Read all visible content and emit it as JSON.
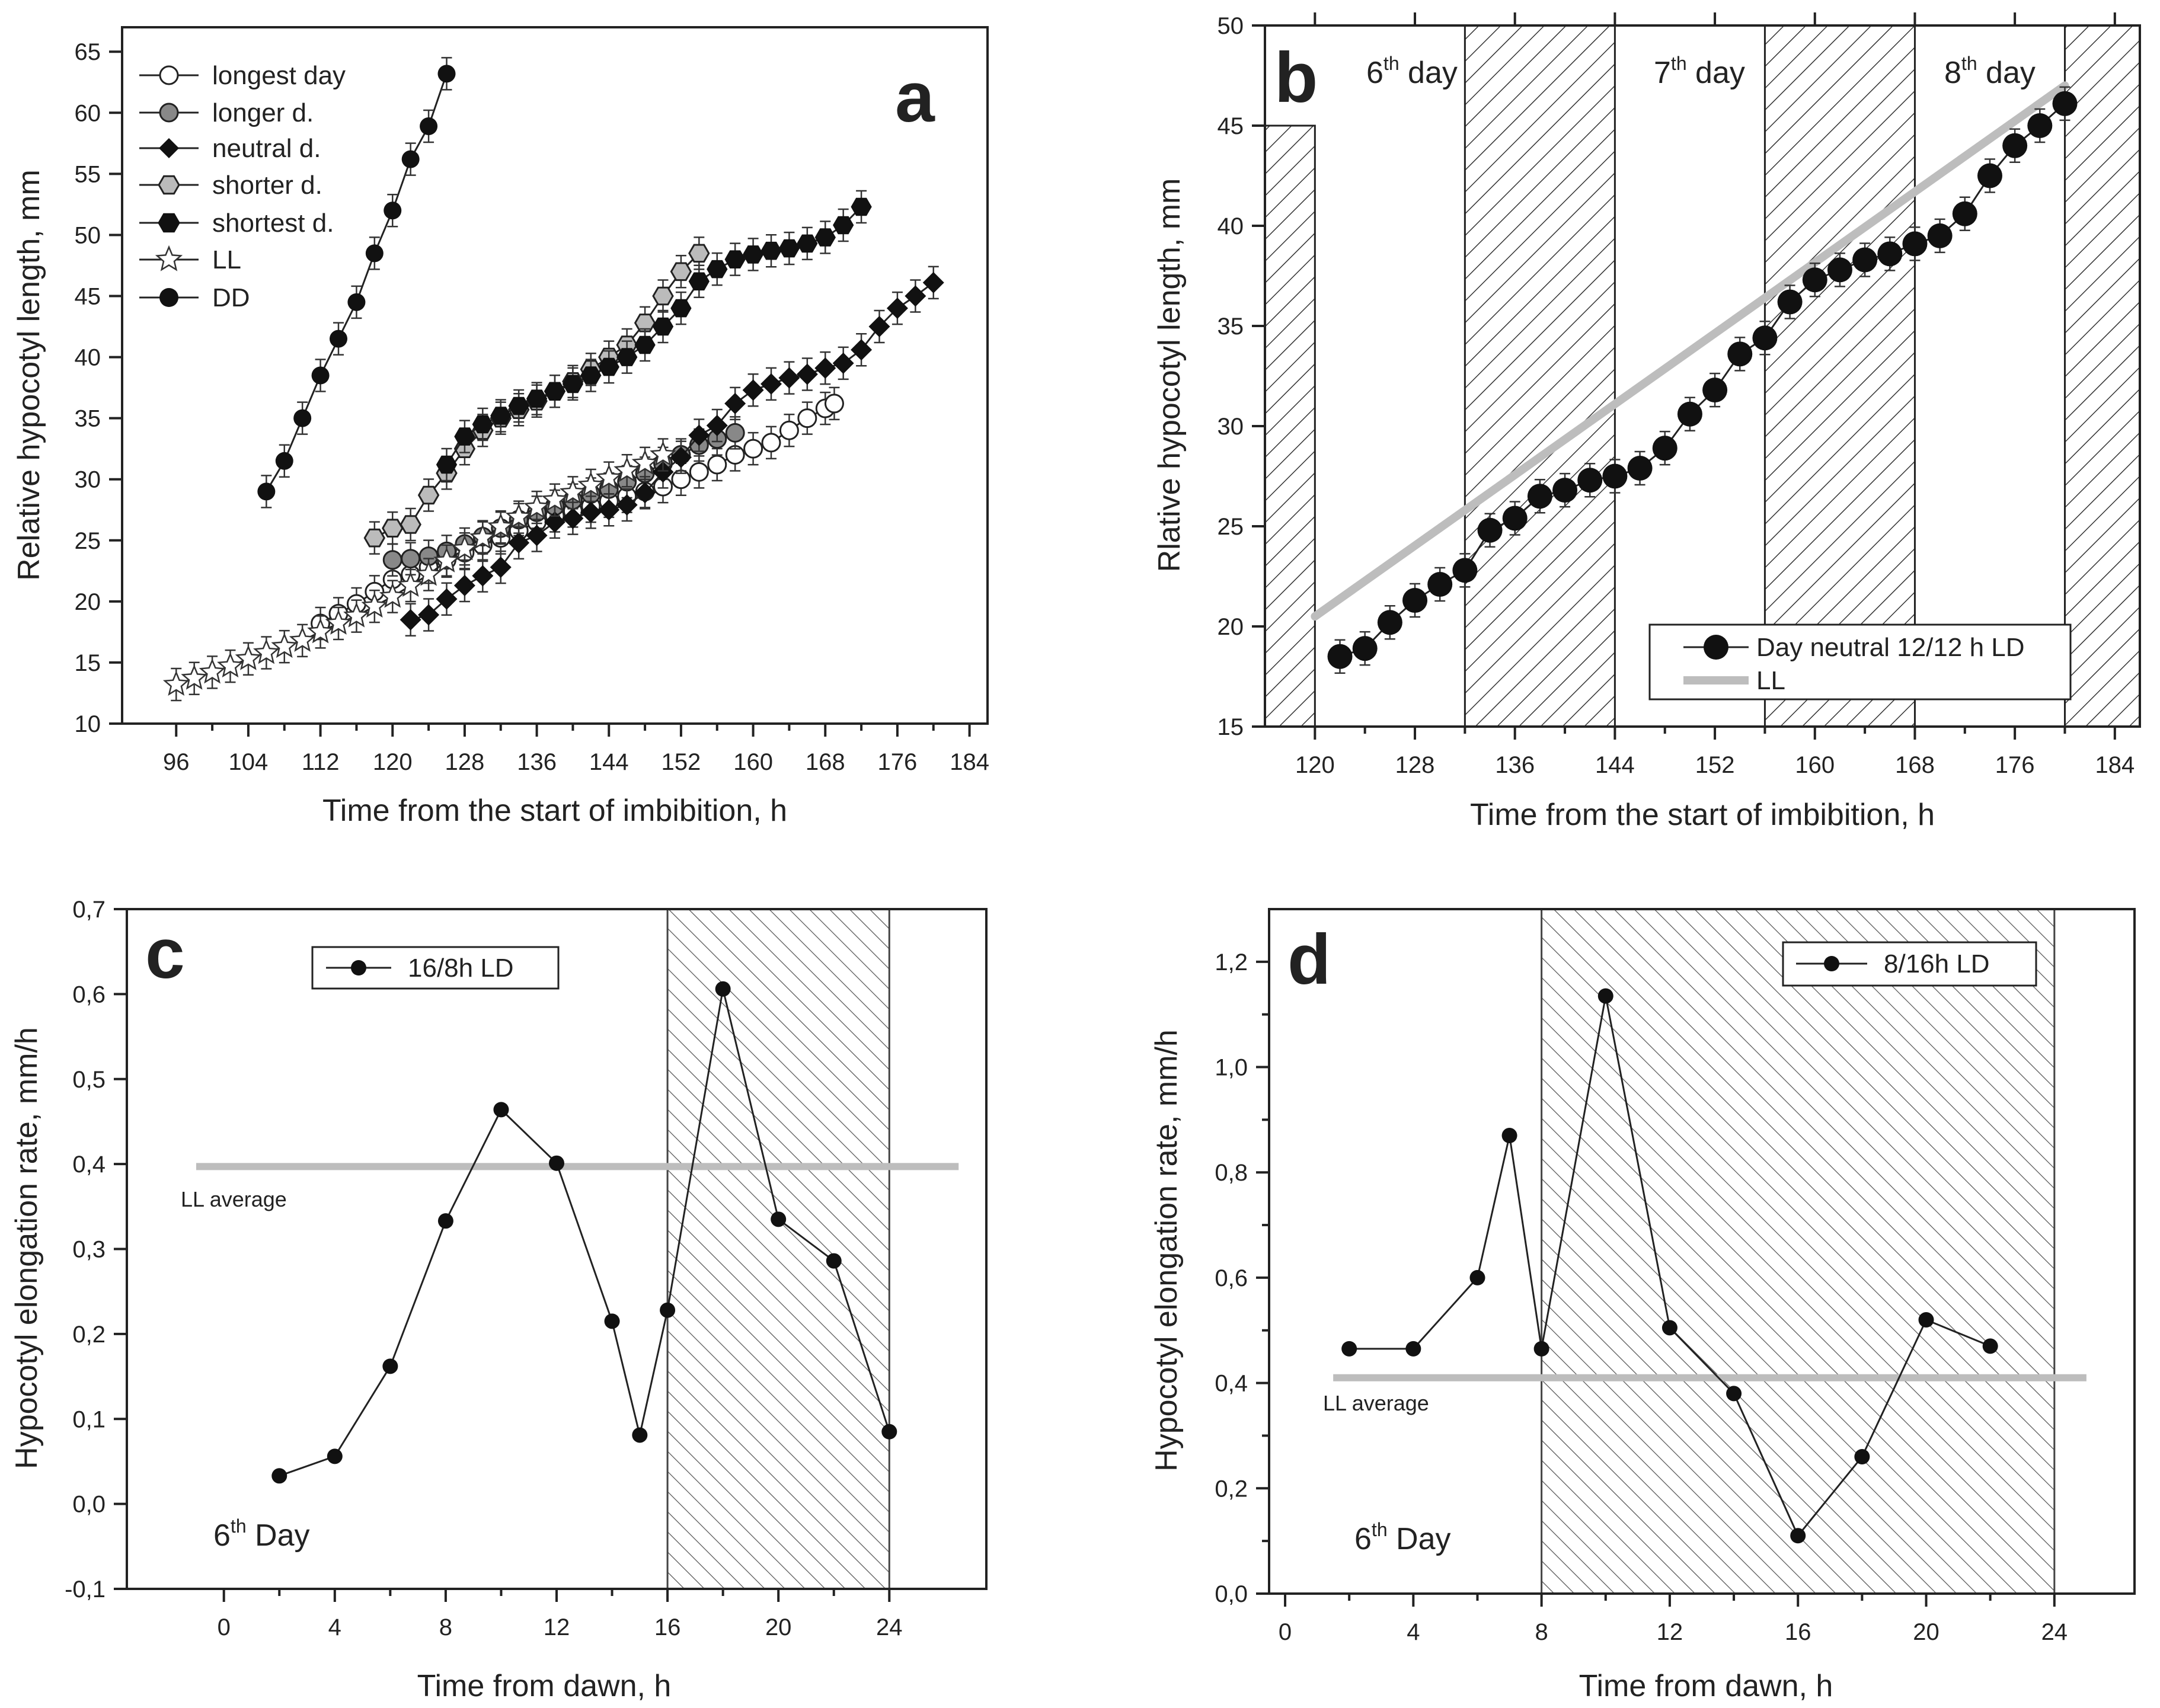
{
  "chart_data": [
    {
      "id": "a",
      "type": "line",
      "panel_label": "a",
      "xlabel": "Time from the start of imbibition, h",
      "ylabel": "Relative hypocotyl length, mm",
      "xlim": [
        90,
        186
      ],
      "ylim": [
        10,
        67
      ],
      "xticks": [
        "96",
        "104",
        "112",
        "120",
        "128",
        "136",
        "144",
        "152",
        "160",
        "168",
        "176",
        "184"
      ],
      "yticks": [
        "10",
        "15",
        "20",
        "25",
        "30",
        "35",
        "40",
        "45",
        "50",
        "55",
        "60",
        "65"
      ],
      "series": [
        {
          "name": "longest day",
          "marker": "circle-open",
          "x": [
            112,
            114,
            116,
            118,
            120,
            122,
            124,
            126,
            128,
            130,
            132,
            134,
            136,
            138,
            140,
            142,
            144,
            146,
            148,
            150,
            152,
            154,
            156,
            158,
            160,
            162,
            164,
            166,
            168,
            169
          ],
          "y": [
            18.2,
            19.0,
            19.8,
            20.8,
            21.8,
            22.2,
            22.8,
            23.4,
            24.0,
            24.6,
            25.2,
            25.8,
            26.5,
            27.0,
            27.4,
            27.8,
            28.2,
            28.6,
            29.0,
            29.4,
            30.0,
            30.6,
            31.2,
            32.0,
            32.5,
            33.0,
            34.0,
            35.0,
            35.8,
            36.2
          ]
        },
        {
          "name": "longer d.",
          "marker": "circle-grey",
          "x": [
            120,
            122,
            124,
            126,
            128,
            130,
            132,
            134,
            136,
            138,
            140,
            142,
            144,
            146,
            148,
            150,
            152,
            154,
            156,
            158
          ],
          "y": [
            23.4,
            23.5,
            23.7,
            24.1,
            24.7,
            25.3,
            26.0,
            26.7,
            27.3,
            27.8,
            28.3,
            28.8,
            29.2,
            29.8,
            30.5,
            31.3,
            32.0,
            32.8,
            33.3,
            33.8
          ]
        },
        {
          "name": "neutral d.",
          "marker": "diamond",
          "x": [
            122,
            124,
            126,
            128,
            130,
            132,
            134,
            136,
            138,
            140,
            142,
            144,
            146,
            148,
            150,
            152,
            154,
            156,
            158,
            160,
            162,
            164,
            166,
            168,
            170,
            172,
            174,
            176,
            178,
            180
          ],
          "y": [
            18.5,
            18.9,
            20.2,
            21.3,
            22.1,
            22.8,
            24.8,
            25.4,
            26.5,
            26.8,
            27.3,
            27.5,
            27.9,
            28.9,
            30.6,
            31.8,
            33.6,
            34.4,
            36.2,
            37.3,
            37.8,
            38.3,
            38.6,
            39.1,
            39.5,
            40.6,
            42.5,
            44.0,
            45.0,
            46.1
          ]
        },
        {
          "name": "shorter d.",
          "marker": "hexagon-grey",
          "x": [
            118,
            120,
            122,
            124,
            126,
            128,
            130,
            132,
            134,
            136,
            138,
            140,
            142,
            144,
            146,
            148,
            150,
            152,
            154
          ],
          "y": [
            25.2,
            26.0,
            26.3,
            28.7,
            30.5,
            32.5,
            34.0,
            35.0,
            35.7,
            36.4,
            37.2,
            38.0,
            39.0,
            40.0,
            41.0,
            42.8,
            45.0,
            47.0,
            48.5
          ]
        },
        {
          "name": "shortest d.",
          "marker": "hexagon",
          "x": [
            126,
            128,
            130,
            132,
            134,
            136,
            138,
            140,
            142,
            144,
            146,
            148,
            150,
            152,
            154,
            156,
            158,
            160,
            162,
            164,
            166,
            168,
            170,
            172
          ],
          "y": [
            31.2,
            33.5,
            34.5,
            35.2,
            36.0,
            36.6,
            37.2,
            37.8,
            38.5,
            39.2,
            40.0,
            41.0,
            42.5,
            44.0,
            46.2,
            47.2,
            48.0,
            48.4,
            48.7,
            48.9,
            49.3,
            49.8,
            50.8,
            52.3
          ]
        },
        {
          "name": "LL",
          "marker": "star",
          "x": [
            96,
            98,
            100,
            102,
            104,
            106,
            108,
            110,
            112,
            114,
            116,
            118,
            120,
            122,
            124,
            126,
            128,
            130,
            132,
            134,
            136,
            138,
            140,
            142,
            144,
            146,
            148,
            150
          ],
          "y": [
            13.2,
            13.7,
            14.2,
            14.7,
            15.3,
            15.8,
            16.3,
            16.8,
            17.5,
            18.2,
            18.8,
            19.6,
            20.4,
            21.3,
            22.2,
            23.3,
            24.3,
            25.2,
            26.1,
            26.9,
            27.7,
            28.3,
            28.9,
            29.5,
            30.1,
            30.7,
            31.3,
            32.0
          ]
        },
        {
          "name": "DD",
          "marker": "circle",
          "x": [
            106,
            108,
            110,
            112,
            114,
            116,
            118,
            120,
            122,
            124,
            126
          ],
          "y": [
            29.0,
            31.5,
            35.0,
            38.5,
            41.5,
            44.5,
            48.5,
            52.0,
            56.2,
            58.9,
            63.2
          ]
        }
      ]
    },
    {
      "id": "b",
      "type": "line",
      "panel_label": "b",
      "xlabel": "Time from the start of imbibition, h",
      "ylabel": "Rlative hypocotyl length, mm",
      "xlim": [
        116,
        186
      ],
      "ylim": [
        15,
        50
      ],
      "xticks": [
        "120",
        "128",
        "136",
        "144",
        "152",
        "160",
        "168",
        "176",
        "184"
      ],
      "yticks": [
        "15",
        "20",
        "25",
        "30",
        "35",
        "40",
        "45",
        "50"
      ],
      "day_labels": [
        {
          "main": "6",
          "sup": "th",
          "rest": " day"
        },
        {
          "main": "7",
          "sup": "th",
          "rest": " day"
        },
        {
          "main": "8",
          "sup": "th",
          "rest": " day"
        }
      ],
      "dark_periods_h": [
        [
          116,
          120
        ],
        [
          132,
          144
        ],
        [
          156,
          168
        ],
        [
          180,
          186
        ]
      ],
      "series": [
        {
          "name": "Day neutral 12/12 h LD",
          "marker": "circle",
          "x": [
            122,
            124,
            126,
            128,
            130,
            132,
            134,
            136,
            138,
            140,
            142,
            144,
            146,
            148,
            150,
            152,
            154,
            156,
            158,
            160,
            162,
            164,
            166,
            168,
            170,
            172,
            174,
            176,
            178,
            180
          ],
          "y": [
            18.5,
            18.9,
            20.2,
            21.3,
            22.1,
            22.8,
            24.8,
            25.4,
            26.5,
            26.8,
            27.3,
            27.5,
            27.9,
            28.9,
            30.6,
            31.8,
            33.6,
            34.4,
            36.2,
            37.3,
            37.8,
            38.3,
            38.6,
            39.1,
            39.5,
            40.6,
            42.5,
            44.0,
            45.0,
            46.1
          ]
        },
        {
          "name": "LL",
          "marker": "line",
          "x": [
            120,
            180
          ],
          "y": [
            20.5,
            47.0
          ]
        }
      ]
    },
    {
      "id": "c",
      "type": "line",
      "panel_label": "c",
      "xlabel": "Time from dawn, h",
      "ylabel": "Hypocotyl elongation rate, mm/h",
      "xlim": [
        -3.5,
        27.5
      ],
      "ylim": [
        -0.1,
        0.7
      ],
      "xticks": [
        "0",
        "4",
        "8",
        "12",
        "16",
        "20",
        "24"
      ],
      "yticks": [
        "-0,1",
        "0,0",
        "0,1",
        "0,2",
        "0,3",
        "0,4",
        "0,5",
        "0,6",
        "0,7"
      ],
      "day_label": {
        "main": "6",
        "sup": "th",
        "rest": " Day"
      },
      "dark_period_h": [
        16,
        24
      ],
      "ll_average": 0.397,
      "ll_average_label": "LL average",
      "series": [
        {
          "name": "16/8h LD",
          "x": [
            2,
            4,
            6,
            8,
            10,
            12,
            14,
            15,
            16,
            18,
            20,
            22,
            24
          ],
          "y": [
            0.033,
            0.056,
            0.162,
            0.333,
            0.464,
            0.401,
            0.215,
            0.081,
            0.228,
            0.606,
            0.335,
            0.286,
            0.085
          ]
        }
      ]
    },
    {
      "id": "d",
      "type": "line",
      "panel_label": "d",
      "xlabel": "Time from dawn, h",
      "ylabel": "Hypocotyl elongation rate, mm/h",
      "xlim": [
        -0.5,
        26.5
      ],
      "ylim": [
        0.0,
        1.3
      ],
      "xticks": [
        "0",
        "4",
        "8",
        "12",
        "16",
        "20",
        "24"
      ],
      "yticks": [
        "0,0",
        "0,2",
        "0,4",
        "0,6",
        "0,8",
        "1,0",
        "1,2"
      ],
      "day_label": {
        "main": "6",
        "sup": "th",
        "rest": " Day"
      },
      "dark_period_h": [
        8,
        24
      ],
      "ll_average": 0.41,
      "ll_average_label": "LL average",
      "series": [
        {
          "name": "8/16h LD",
          "x": [
            2,
            4,
            6,
            7,
            8,
            10,
            12,
            14,
            16,
            18,
            20,
            22
          ],
          "y": [
            0.465,
            0.465,
            0.6,
            0.87,
            0.465,
            1.135,
            0.505,
            0.38,
            0.11,
            0.26,
            0.52,
            0.47
          ]
        }
      ]
    }
  ]
}
